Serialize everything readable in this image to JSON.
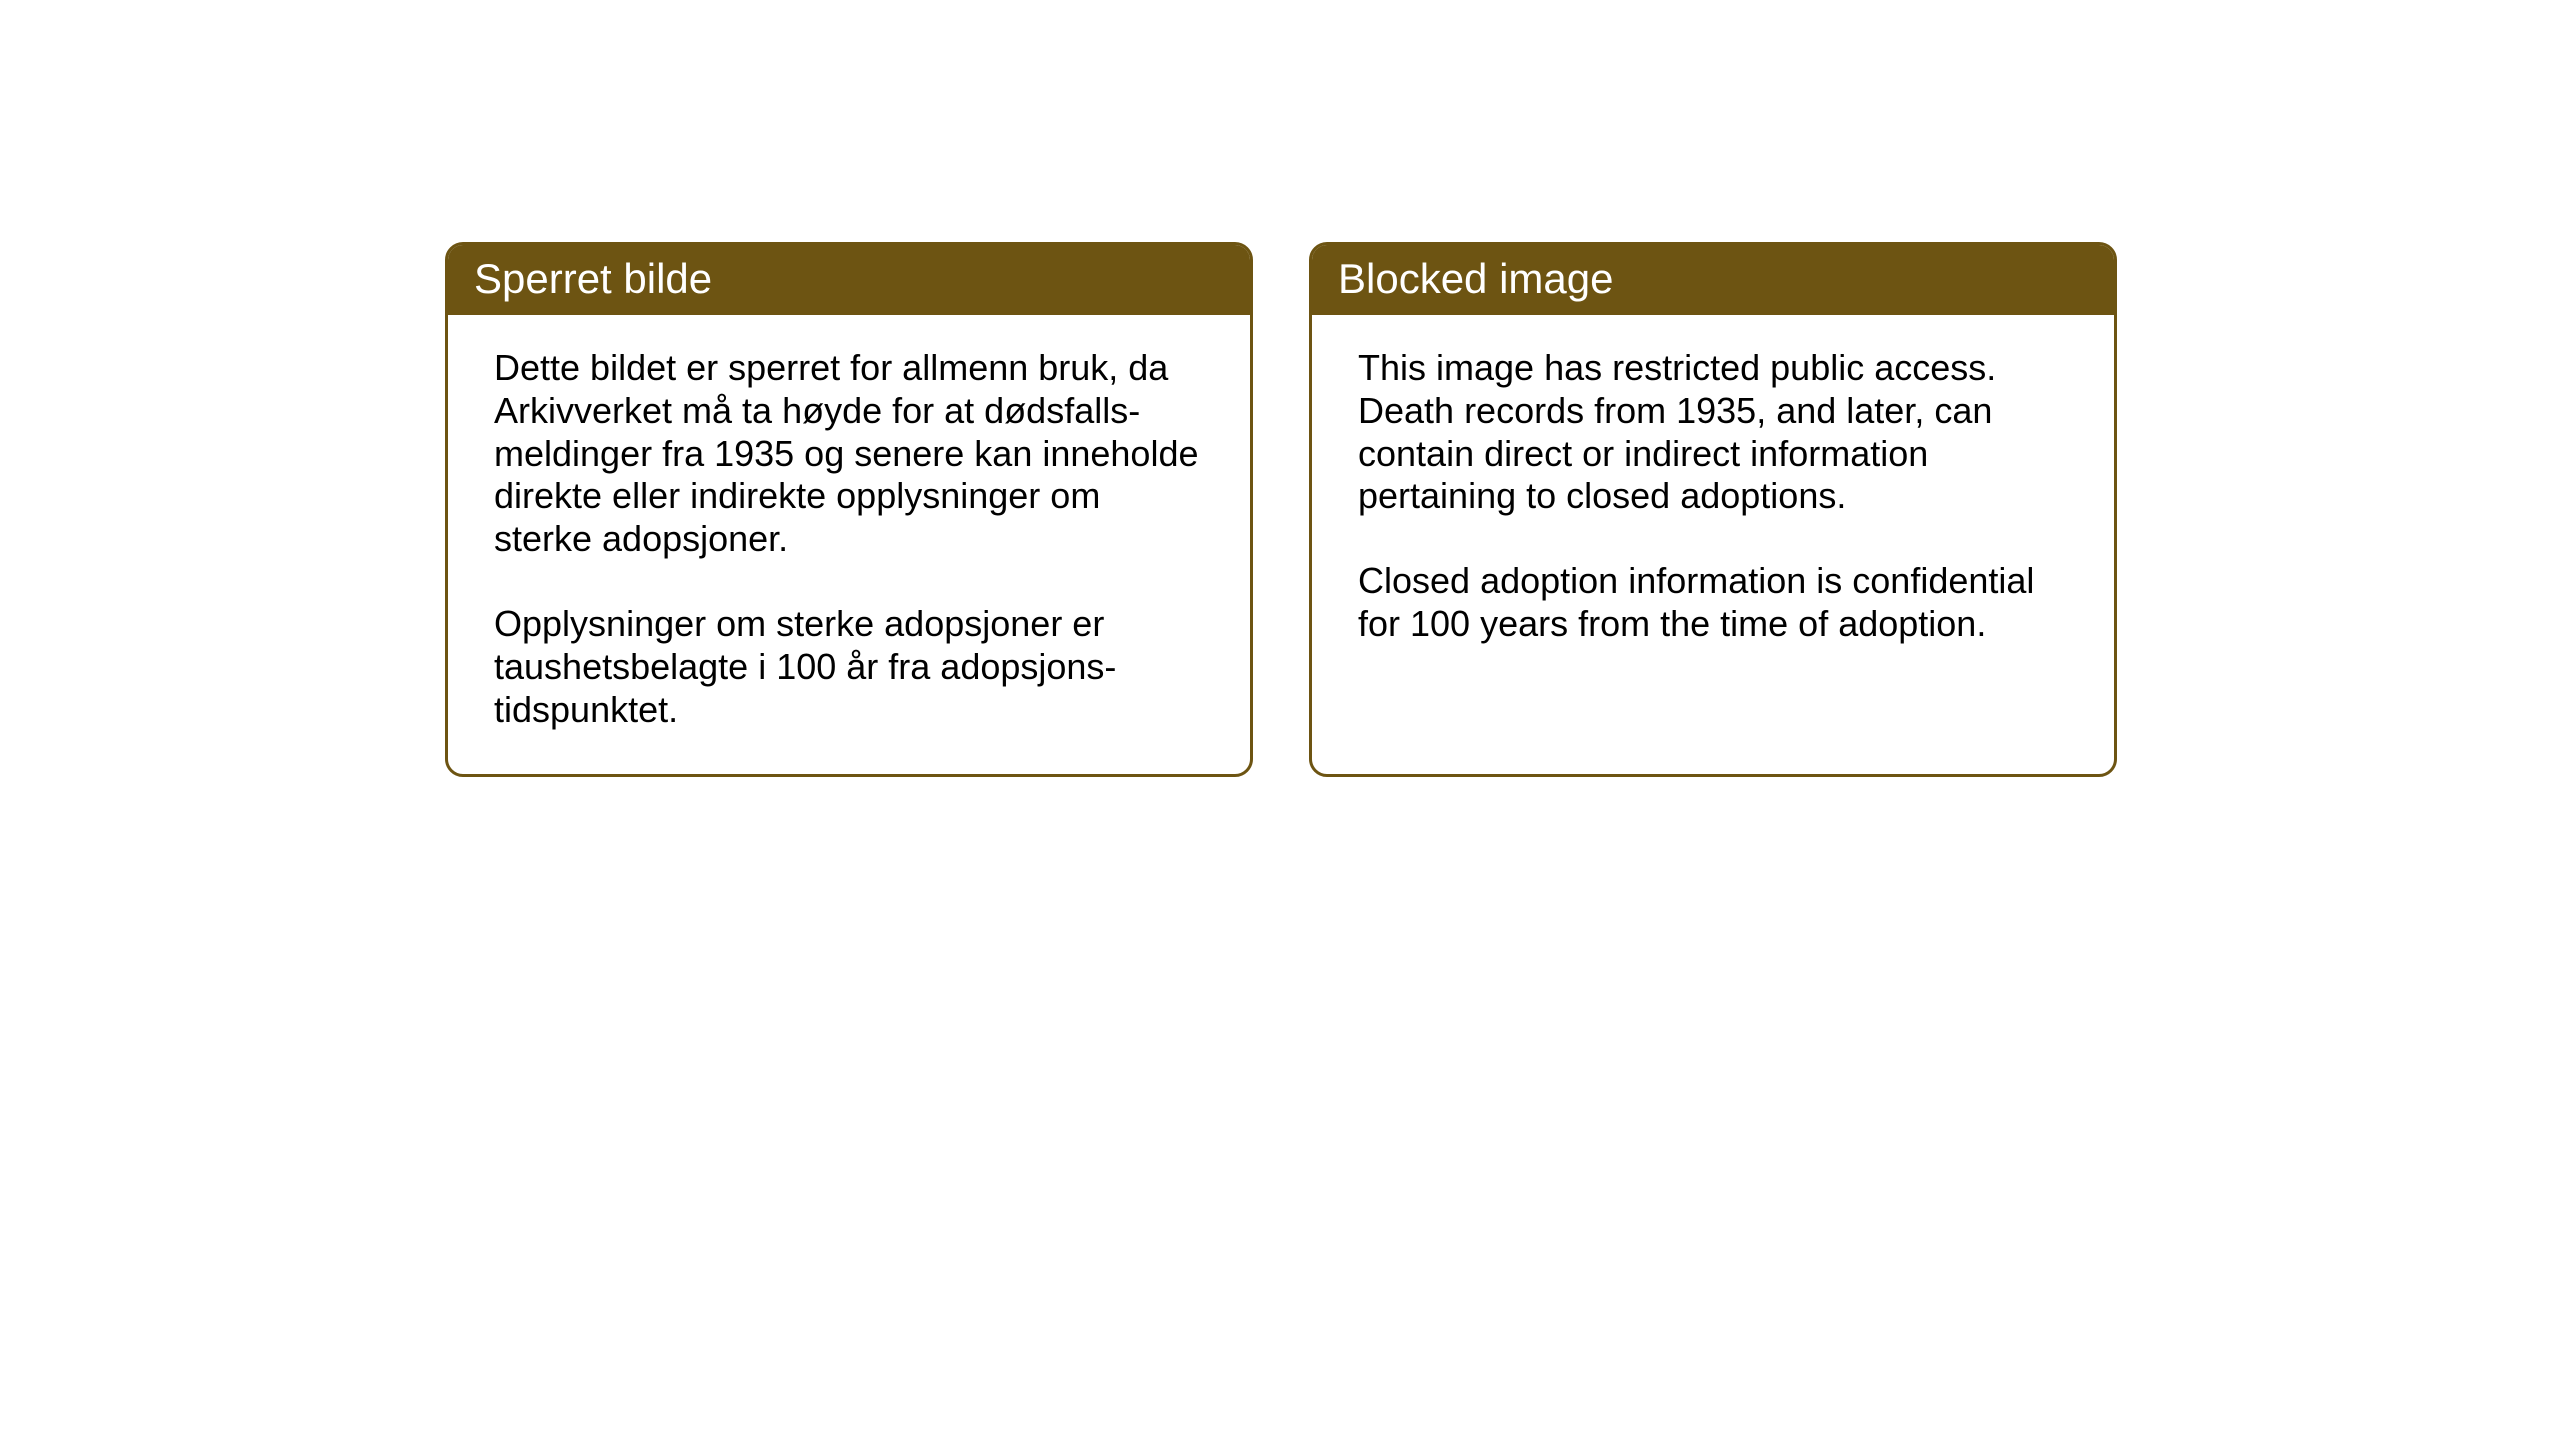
{
  "cards": {
    "norwegian": {
      "title": "Sperret bilde",
      "paragraph1": "Dette bildet er sperret for allmenn bruk, da Arkivverket må ta høyde for at dødsfalls-meldinger fra 1935 og senere kan inneholde direkte eller indirekte opplysninger om sterke adopsjoner.",
      "paragraph2": "Opplysninger om sterke adopsjoner er taushetsbelagte i 100 år fra adopsjons-tidspunktet."
    },
    "english": {
      "title": "Blocked image",
      "paragraph1": "This image has restricted public access. Death records from 1935, and later, can contain direct or indirect information pertaining to closed adoptions.",
      "paragraph2": "Closed adoption information is confidential for 100 years from the time of adoption."
    }
  },
  "styling": {
    "header_background": "#6d5412",
    "header_text_color": "#ffffff",
    "border_color": "#6d5412",
    "body_background": "#ffffff",
    "body_text_color": "#000000",
    "title_fontsize": 42,
    "body_fontsize": 36,
    "border_radius": 18,
    "border_width": 3
  }
}
